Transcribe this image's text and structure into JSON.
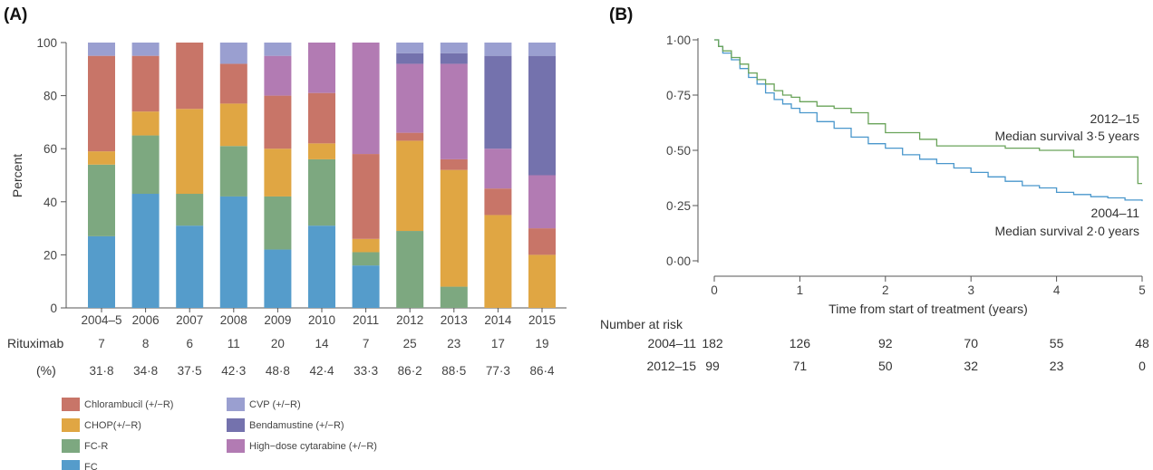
{
  "panel_a": {
    "label": "(A)",
    "ylabel": "Percent",
    "yticks": [
      "0",
      "20",
      "40",
      "60",
      "80",
      "100"
    ],
    "rituximab_label": "Rituximab",
    "pct_label": "(%)",
    "rituximab_counts": [
      "7",
      "8",
      "6",
      "11",
      "20",
      "14",
      "7",
      "25",
      "23",
      "17",
      "19"
    ],
    "rituximab_pct": [
      "31·8",
      "34·8",
      "37·5",
      "42·3",
      "48·8",
      "42·4",
      "33·3",
      "86·2",
      "88·5",
      "77·3",
      "86·4"
    ]
  },
  "panel_b": {
    "label": "(B)",
    "xlabel": "Time from start of treatment (years)",
    "yticks": [
      "0·00",
      "0·25",
      "0·50",
      "0·75",
      "1·00"
    ],
    "xticks": [
      "0",
      "1",
      "2",
      "3",
      "4",
      "5"
    ],
    "annot_2012_title": "2012–15",
    "annot_2012_median": "Median survival 3·5 years",
    "annot_2004_title": "2004–11",
    "annot_2004_median": "Median survival 2·0 years",
    "risk_title": "Number at risk",
    "risk_rows": [
      {
        "label": "2004–11",
        "values": [
          "182",
          "126",
          "92",
          "70",
          "55",
          "48"
        ]
      },
      {
        "label": "2012–15",
        "values": [
          "99",
          "71",
          "50",
          "32",
          "23",
          "0"
        ]
      }
    ]
  },
  "legend": [
    {
      "label": "Chlorambucil (+/−R)",
      "color": "#c87568"
    },
    {
      "label": "CHOP(+/−R)",
      "color": "#e0a643"
    },
    {
      "label": "FC-R",
      "color": "#7da880"
    },
    {
      "label": "FC",
      "color": "#559ccb"
    },
    {
      "label": "CVP (+/−R)",
      "color": "#9a9fd0"
    },
    {
      "label": "Bendamustine (+/−R)",
      "color": "#7472ad"
    },
    {
      "label": "High−dose cytarabine (+/−R)",
      "color": "#b27bb3"
    }
  ],
  "chart_data": [
    {
      "type": "bar",
      "stacked": true,
      "categories": [
        "2004–5",
        "2006",
        "2007",
        "2008",
        "2009",
        "2010",
        "2011",
        "2012",
        "2013",
        "2014",
        "2015"
      ],
      "ylim": [
        0,
        100
      ],
      "ylabel": "Percent",
      "series": [
        {
          "name": "FC",
          "values": [
            27,
            43,
            31,
            42,
            22,
            31,
            16,
            0,
            0,
            0,
            0
          ]
        },
        {
          "name": "FC-R",
          "values": [
            27,
            22,
            12,
            19,
            20,
            25,
            5,
            29,
            8,
            0,
            0
          ]
        },
        {
          "name": "CHOP(+/−R)",
          "values": [
            5,
            9,
            32,
            16,
            18,
            6,
            5,
            34,
            44,
            35,
            20
          ]
        },
        {
          "name": "Chlorambucil (+/−R)",
          "values": [
            36,
            21,
            25,
            15,
            20,
            19,
            32,
            3,
            4,
            10,
            10
          ]
        },
        {
          "name": "High−dose cytarabine (+/−R)",
          "values": [
            0,
            0,
            0,
            0,
            15,
            19,
            42,
            26,
            36,
            15,
            20
          ]
        },
        {
          "name": "Bendamustine (+/−R)",
          "values": [
            0,
            0,
            0,
            0,
            0,
            0,
            0,
            4,
            4,
            35,
            45
          ]
        },
        {
          "name": "CVP (+/−R)",
          "values": [
            5,
            5,
            0,
            8,
            5,
            0,
            0,
            4,
            4,
            5,
            5
          ]
        }
      ]
    },
    {
      "type": "line",
      "xlim": [
        0,
        5
      ],
      "ylim": [
        0,
        1
      ],
      "xlabel": "Time from start of treatment (years)",
      "grid": false,
      "series": [
        {
          "name": "2004–11",
          "color": "#4a97cc",
          "x": [
            0,
            0.05,
            0.1,
            0.2,
            0.3,
            0.4,
            0.5,
            0.6,
            0.7,
            0.8,
            0.9,
            1.0,
            1.2,
            1.4,
            1.6,
            1.8,
            2.0,
            2.2,
            2.4,
            2.6,
            2.8,
            3.0,
            3.2,
            3.4,
            3.6,
            3.8,
            4.0,
            4.2,
            4.4,
            4.6,
            4.8,
            5.0
          ],
          "y": [
            1.0,
            0.97,
            0.94,
            0.91,
            0.87,
            0.83,
            0.8,
            0.76,
            0.73,
            0.71,
            0.69,
            0.67,
            0.63,
            0.6,
            0.56,
            0.53,
            0.51,
            0.48,
            0.46,
            0.44,
            0.42,
            0.4,
            0.38,
            0.36,
            0.34,
            0.33,
            0.31,
            0.3,
            0.29,
            0.285,
            0.275,
            0.27
          ]
        },
        {
          "name": "2012–15",
          "color": "#6aa45a",
          "x": [
            0,
            0.05,
            0.1,
            0.2,
            0.3,
            0.4,
            0.5,
            0.6,
            0.7,
            0.8,
            0.9,
            1.0,
            1.2,
            1.4,
            1.6,
            1.8,
            2.0,
            2.2,
            2.4,
            2.6,
            2.8,
            3.0,
            3.2,
            3.4,
            3.6,
            3.8,
            4.0,
            4.2,
            4.4,
            4.6,
            4.8,
            4.95,
            5.0
          ],
          "y": [
            1.0,
            0.97,
            0.95,
            0.92,
            0.89,
            0.85,
            0.82,
            0.8,
            0.77,
            0.75,
            0.74,
            0.72,
            0.7,
            0.69,
            0.67,
            0.62,
            0.58,
            0.58,
            0.55,
            0.52,
            0.52,
            0.52,
            0.52,
            0.51,
            0.51,
            0.5,
            0.5,
            0.47,
            0.47,
            0.47,
            0.47,
            0.35,
            0.35
          ]
        }
      ]
    }
  ]
}
